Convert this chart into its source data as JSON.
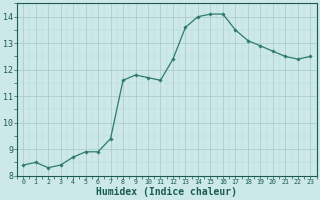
{
  "x": [
    0,
    1,
    2,
    3,
    4,
    5,
    6,
    7,
    8,
    9,
    10,
    11,
    12,
    13,
    14,
    15,
    16,
    17,
    18,
    19,
    20,
    21,
    22,
    23
  ],
  "y": [
    8.4,
    8.5,
    8.3,
    8.4,
    8.7,
    8.9,
    8.9,
    9.4,
    11.6,
    11.8,
    11.7,
    11.6,
    12.4,
    13.6,
    14.0,
    14.1,
    14.1,
    13.5,
    13.1,
    12.9,
    12.7,
    12.5,
    12.4,
    12.5
  ],
  "line_color": "#2d7a6e",
  "marker": "D",
  "marker_size": 1.8,
  "bg_color": "#cce8e8",
  "grid_color_major": "#aac8c8",
  "grid_color_minor": "#bbdada",
  "xlabel": "Humidex (Indice chaleur)",
  "xlabel_fontsize": 7,
  "tick_color": "#1a5c50",
  "ylim": [
    8,
    14.5
  ],
  "xlim": [
    -0.5,
    23.5
  ],
  "yticks": [
    8,
    9,
    10,
    11,
    12,
    13,
    14
  ],
  "xticks": [
    0,
    1,
    2,
    3,
    4,
    5,
    6,
    7,
    8,
    9,
    10,
    11,
    12,
    13,
    14,
    15,
    16,
    17,
    18,
    19,
    20,
    21,
    22,
    23
  ],
  "linewidth": 0.9
}
